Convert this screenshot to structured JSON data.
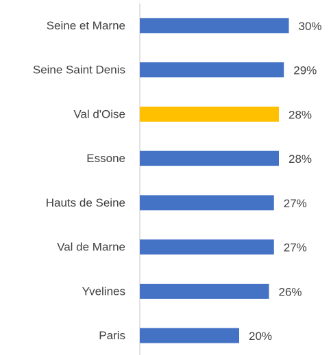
{
  "chart_data": {
    "type": "hbar",
    "categories": [
      "Seine et Marne",
      "Seine Saint Denis",
      "Val d'Oise",
      "Essone",
      "Hauts de Seine",
      "Val de Marne",
      "Yvelines",
      "Paris"
    ],
    "values": [
      30,
      29,
      28,
      28,
      27,
      27,
      26,
      20
    ],
    "value_labels": [
      "30%",
      "29%",
      "28%",
      "28%",
      "27%",
      "27%",
      "26%",
      "20%"
    ],
    "colors": [
      "#4472c4",
      "#4472c4",
      "#ffc000",
      "#4472c4",
      "#4472c4",
      "#4472c4",
      "#4472c4",
      "#4472c4"
    ],
    "xlim": [
      0,
      36
    ]
  }
}
